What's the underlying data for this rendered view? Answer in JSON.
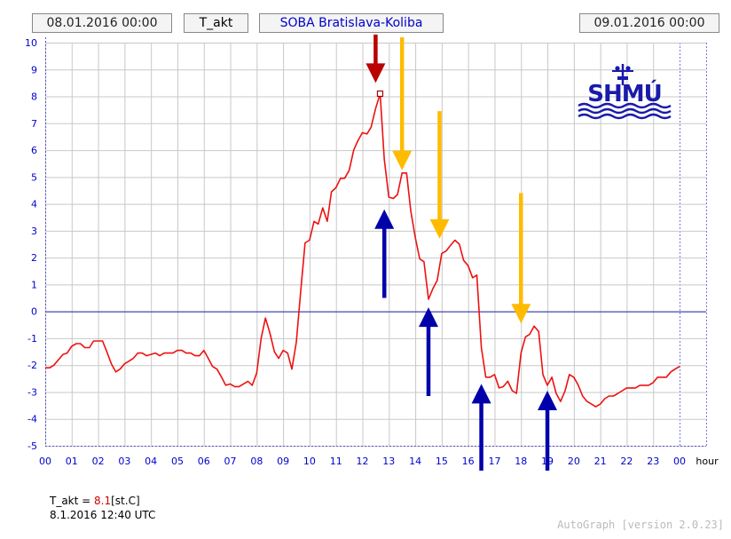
{
  "header": {
    "start": "08.01.2016 00:00",
    "variable": "T_akt",
    "station": "SOBA Bratislava-Koliba",
    "end": "09.01.2016 00:00"
  },
  "logo": {
    "text": "SHMÚ"
  },
  "chart_data": {
    "type": "line",
    "title": "",
    "xlabel": "hour",
    "ylabel": "",
    "xlim": [
      0,
      24
    ],
    "ylim": [
      -5,
      10
    ],
    "grid": true,
    "xticks": [
      "00",
      "01",
      "02",
      "03",
      "04",
      "05",
      "06",
      "07",
      "08",
      "09",
      "10",
      "11",
      "12",
      "13",
      "14",
      "15",
      "16",
      "17",
      "18",
      "19",
      "20",
      "21",
      "22",
      "23",
      "00"
    ],
    "yticks": [
      "-5",
      "-4",
      "-3",
      "-2",
      "-1",
      "0",
      "1",
      "2",
      "3",
      "4",
      "5",
      "6",
      "7",
      "8",
      "9",
      "10"
    ],
    "colors": {
      "line": "#ee1111",
      "zero_line": "#2222aa",
      "grid": "#c8c8c8",
      "axis_text": "#0000cc"
    },
    "series": [
      {
        "values": [
          [
            0,
            -2.1
          ],
          [
            0.17,
            -2.1
          ],
          [
            0.33,
            -2.0
          ],
          [
            0.5,
            -1.8
          ],
          [
            0.67,
            -1.6
          ],
          [
            0.83,
            -1.55
          ],
          [
            1.0,
            -1.3
          ],
          [
            1.17,
            -1.2
          ],
          [
            1.33,
            -1.2
          ],
          [
            1.5,
            -1.35
          ],
          [
            1.67,
            -1.35
          ],
          [
            1.83,
            -1.1
          ],
          [
            2.0,
            -1.1
          ],
          [
            2.17,
            -1.1
          ],
          [
            2.33,
            -1.5
          ],
          [
            2.5,
            -1.95
          ],
          [
            2.67,
            -2.25
          ],
          [
            2.83,
            -2.15
          ],
          [
            3.0,
            -1.95
          ],
          [
            3.17,
            -1.85
          ],
          [
            3.33,
            -1.75
          ],
          [
            3.5,
            -1.55
          ],
          [
            3.67,
            -1.55
          ],
          [
            3.83,
            -1.65
          ],
          [
            4.0,
            -1.6
          ],
          [
            4.17,
            -1.55
          ],
          [
            4.33,
            -1.65
          ],
          [
            4.5,
            -1.55
          ],
          [
            4.67,
            -1.55
          ],
          [
            4.83,
            -1.55
          ],
          [
            5.0,
            -1.45
          ],
          [
            5.17,
            -1.45
          ],
          [
            5.33,
            -1.55
          ],
          [
            5.5,
            -1.55
          ],
          [
            5.67,
            -1.65
          ],
          [
            5.83,
            -1.65
          ],
          [
            6.0,
            -1.45
          ],
          [
            6.17,
            -1.75
          ],
          [
            6.33,
            -2.05
          ],
          [
            6.5,
            -2.15
          ],
          [
            6.67,
            -2.45
          ],
          [
            6.83,
            -2.75
          ],
          [
            7.0,
            -2.7
          ],
          [
            7.17,
            -2.8
          ],
          [
            7.33,
            -2.8
          ],
          [
            7.5,
            -2.7
          ],
          [
            7.67,
            -2.6
          ],
          [
            7.83,
            -2.75
          ],
          [
            8.0,
            -2.3
          ],
          [
            8.17,
            -1.0
          ],
          [
            8.33,
            -0.25
          ],
          [
            8.5,
            -0.8
          ],
          [
            8.67,
            -1.5
          ],
          [
            8.83,
            -1.75
          ],
          [
            9.0,
            -1.45
          ],
          [
            9.17,
            -1.55
          ],
          [
            9.33,
            -2.15
          ],
          [
            9.5,
            -1.15
          ],
          [
            9.67,
            0.8
          ],
          [
            9.83,
            2.55
          ],
          [
            10.0,
            2.65
          ],
          [
            10.17,
            3.35
          ],
          [
            10.33,
            3.25
          ],
          [
            10.5,
            3.85
          ],
          [
            10.67,
            3.35
          ],
          [
            10.83,
            4.45
          ],
          [
            11.0,
            4.6
          ],
          [
            11.17,
            4.95
          ],
          [
            11.33,
            4.95
          ],
          [
            11.5,
            5.25
          ],
          [
            11.67,
            6.0
          ],
          [
            11.83,
            6.35
          ],
          [
            12.0,
            6.65
          ],
          [
            12.17,
            6.6
          ],
          [
            12.33,
            6.85
          ],
          [
            12.5,
            7.55
          ],
          [
            12.67,
            8.1
          ],
          [
            12.83,
            5.65
          ],
          [
            13.0,
            4.25
          ],
          [
            13.17,
            4.2
          ],
          [
            13.33,
            4.35
          ],
          [
            13.5,
            5.15
          ],
          [
            13.67,
            5.15
          ],
          [
            13.83,
            3.75
          ],
          [
            14.0,
            2.75
          ],
          [
            14.17,
            1.95
          ],
          [
            14.33,
            1.85
          ],
          [
            14.5,
            0.45
          ],
          [
            14.67,
            0.85
          ],
          [
            14.83,
            1.15
          ],
          [
            15.0,
            2.15
          ],
          [
            15.17,
            2.25
          ],
          [
            15.33,
            2.45
          ],
          [
            15.5,
            2.65
          ],
          [
            15.67,
            2.5
          ],
          [
            15.83,
            1.9
          ],
          [
            16.0,
            1.7
          ],
          [
            16.17,
            1.25
          ],
          [
            16.33,
            1.35
          ],
          [
            16.5,
            -1.35
          ],
          [
            16.67,
            -2.45
          ],
          [
            16.83,
            -2.45
          ],
          [
            17.0,
            -2.35
          ],
          [
            17.17,
            -2.85
          ],
          [
            17.33,
            -2.8
          ],
          [
            17.5,
            -2.6
          ],
          [
            17.67,
            -2.95
          ],
          [
            17.83,
            -3.05
          ],
          [
            18.0,
            -1.55
          ],
          [
            18.17,
            -0.95
          ],
          [
            18.33,
            -0.85
          ],
          [
            18.5,
            -0.55
          ],
          [
            18.67,
            -0.75
          ],
          [
            18.83,
            -2.35
          ],
          [
            19.0,
            -2.75
          ],
          [
            19.17,
            -2.45
          ],
          [
            19.33,
            -3.05
          ],
          [
            19.5,
            -3.35
          ],
          [
            19.67,
            -2.95
          ],
          [
            19.83,
            -2.35
          ],
          [
            20.0,
            -2.45
          ],
          [
            20.17,
            -2.75
          ],
          [
            20.33,
            -3.15
          ],
          [
            20.5,
            -3.35
          ],
          [
            20.67,
            -3.45
          ],
          [
            20.83,
            -3.55
          ],
          [
            21.0,
            -3.45
          ],
          [
            21.17,
            -3.25
          ],
          [
            21.33,
            -3.15
          ],
          [
            21.5,
            -3.15
          ],
          [
            21.67,
            -3.05
          ],
          [
            21.83,
            -2.95
          ],
          [
            22.0,
            -2.85
          ],
          [
            22.17,
            -2.85
          ],
          [
            22.33,
            -2.85
          ],
          [
            22.5,
            -2.75
          ],
          [
            22.67,
            -2.75
          ],
          [
            22.83,
            -2.75
          ],
          [
            23.0,
            -2.65
          ],
          [
            23.17,
            -2.45
          ],
          [
            23.33,
            -2.45
          ],
          [
            23.5,
            -2.45
          ],
          [
            23.67,
            -2.25
          ],
          [
            23.83,
            -2.15
          ],
          [
            24.0,
            -2.05
          ]
        ]
      }
    ],
    "marker": {
      "x": 12.67,
      "y": 8.1
    },
    "annotations": {
      "arrows": [
        {
          "color": "#bb0000",
          "x": 12.5,
          "y_from": 10.3,
          "y_to": 8.5
        },
        {
          "color": "#ffbb00",
          "x": 13.5,
          "y_from": 10.2,
          "y_to": 5.25
        },
        {
          "color": "#ffbb00",
          "x": 14.92,
          "y_from": 7.45,
          "y_to": 2.7
        },
        {
          "color": "#ffbb00",
          "x": 18.0,
          "y_from": 4.4,
          "y_to": -0.45
        },
        {
          "color": "#0000aa",
          "x": 12.83,
          "y_from": 0.5,
          "y_to": 3.8
        },
        {
          "color": "#0000aa",
          "x": 14.5,
          "y_from": -3.15,
          "y_to": 0.15
        },
        {
          "color": "#0000aa",
          "x": 16.5,
          "y_from": -6.1,
          "y_to": -2.7
        },
        {
          "color": "#0000aa",
          "x": 19.0,
          "y_from": -6.3,
          "y_to": -2.95
        }
      ]
    }
  },
  "footer": {
    "label": "T_akt = ",
    "value": "8.1",
    "unit": "[st.C]",
    "datetime": "8.1.2016 12:40 UTC"
  },
  "version": "AutoGraph [version 2.0.23]"
}
